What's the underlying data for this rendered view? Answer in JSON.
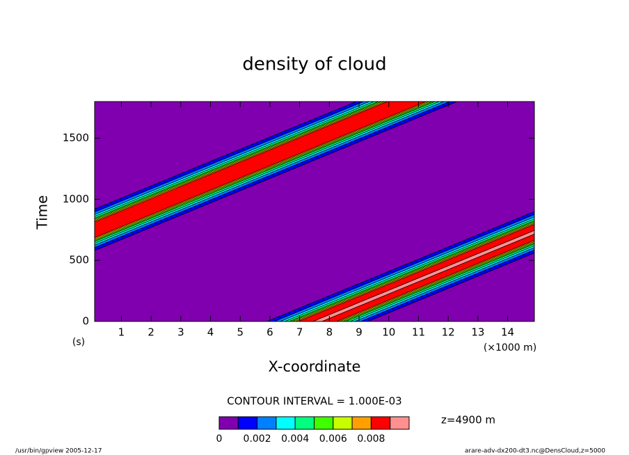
{
  "chart_data": {
    "type": "contour",
    "title": "density of cloud",
    "x_label": "X-coordinate",
    "x_unit": "(×1000 m)",
    "y_label": "Time",
    "y_unit": "(s)",
    "xlim": [
      0.1,
      14.9
    ],
    "xticks": [
      1,
      2,
      3,
      4,
      5,
      6,
      7,
      8,
      9,
      10,
      11,
      12,
      13,
      14
    ],
    "ylim": [
      0,
      1800
    ],
    "yticks": [
      0,
      500,
      1000,
      1500
    ],
    "contours": [
      {
        "level": 0.001,
        "color": "#0000ff",
        "polygons": [
          [
            [
              5.9,
              0
            ],
            [
              9.3,
              0
            ],
            [
              27.3,
              1800
            ],
            [
              23.9,
              1800
            ]
          ],
          [
            [
              -9.1,
              0
            ],
            [
              -5.7,
              0
            ],
            [
              12.3,
              1800
            ],
            [
              8.9,
              1800
            ]
          ]
        ]
      },
      {
        "level": 0.002,
        "color": "#0080ff",
        "polygons": [
          [
            [
              6.15,
              0
            ],
            [
              9.05,
              0
            ],
            [
              27.05,
              1800
            ],
            [
              24.15,
              1800
            ]
          ],
          [
            [
              -8.85,
              0
            ],
            [
              -5.95,
              0
            ],
            [
              12.05,
              1800
            ],
            [
              9.15,
              1800
            ]
          ]
        ]
      },
      {
        "level": 0.003,
        "color": "#00ffff",
        "polygons": [
          [
            [
              6.35,
              0
            ],
            [
              8.85,
              0
            ],
            [
              26.85,
              1800
            ],
            [
              24.35,
              1800
            ]
          ],
          [
            [
              -8.65,
              0
            ],
            [
              -6.15,
              0
            ],
            [
              11.85,
              1800
            ],
            [
              9.35,
              1800
            ]
          ]
        ]
      },
      {
        "level": 0.004,
        "color": "#00ff80",
        "polygons": [
          [
            [
              6.5,
              0
            ],
            [
              8.7,
              0
            ],
            [
              26.7,
              1800
            ],
            [
              24.5,
              1800
            ]
          ],
          [
            [
              -8.5,
              0
            ],
            [
              -6.3,
              0
            ],
            [
              11.7,
              1800
            ],
            [
              9.5,
              1800
            ]
          ]
        ]
      },
      {
        "level": 0.005,
        "color": "#40ff00",
        "polygons": [
          [
            [
              6.65,
              0
            ],
            [
              8.55,
              0
            ],
            [
              26.55,
              1800
            ],
            [
              24.65,
              1800
            ]
          ],
          [
            [
              -8.35,
              0
            ],
            [
              -6.45,
              0
            ],
            [
              11.55,
              1800
            ],
            [
              9.65,
              1800
            ]
          ]
        ]
      },
      {
        "level": 0.006,
        "color": "#c8ff00",
        "polygons": [
          [
            [
              6.75,
              0
            ],
            [
              8.45,
              0
            ],
            [
              26.45,
              1800
            ],
            [
              24.75,
              1800
            ]
          ],
          [
            [
              -8.25,
              0
            ],
            [
              -6.55,
              0
            ],
            [
              11.45,
              1800
            ],
            [
              9.75,
              1800
            ]
          ]
        ]
      },
      {
        "level": 0.007,
        "color": "#ffa000",
        "polygons": [
          [
            [
              6.85,
              0
            ],
            [
              8.35,
              0
            ],
            [
              26.35,
              1800
            ],
            [
              24.85,
              1800
            ]
          ],
          [
            [
              -8.15,
              0
            ],
            [
              -6.65,
              0
            ],
            [
              11.35,
              1800
            ],
            [
              9.85,
              1800
            ]
          ]
        ]
      },
      {
        "level": 0.008,
        "color": "#ff0000",
        "polygons": [
          [
            [
              6.95,
              0
            ],
            [
              8.25,
              0
            ],
            [
              26.25,
              1800
            ],
            [
              24.95,
              1800
            ]
          ],
          [
            [
              -8.05,
              0
            ],
            [
              -6.75,
              0
            ],
            [
              11.25,
              1800
            ],
            [
              9.95,
              1800
            ]
          ]
        ]
      },
      {
        "level": 0.009,
        "color": "#ff9090",
        "polygons": [
          [
            [
              7.45,
              0
            ],
            [
              7.75,
              0
            ],
            [
              25.75,
              1800
            ],
            [
              25.45,
              1800
            ]
          ]
        ]
      }
    ],
    "colorbar": {
      "title": "CONTOUR INTERVAL = 1.000E-03",
      "levels": [
        0,
        0.001,
        0.002,
        0.003,
        0.004,
        0.005,
        0.006,
        0.007,
        0.008,
        0.009,
        0.01
      ],
      "colors": [
        "#8000b0",
        "#0000ff",
        "#0080ff",
        "#00ffff",
        "#00ff80",
        "#40ff00",
        "#c8ff00",
        "#ffa000",
        "#ff0000",
        "#ff9090"
      ],
      "ticks": [
        0,
        0.002,
        0.004,
        0.006,
        0.008
      ]
    },
    "annotation": "z=4900 m",
    "footer_left": "/usr/bin/gpview  2005-12-17",
    "footer_right": "arare-adv-dx200-dt3.nc@DensCloud,z=5000"
  }
}
